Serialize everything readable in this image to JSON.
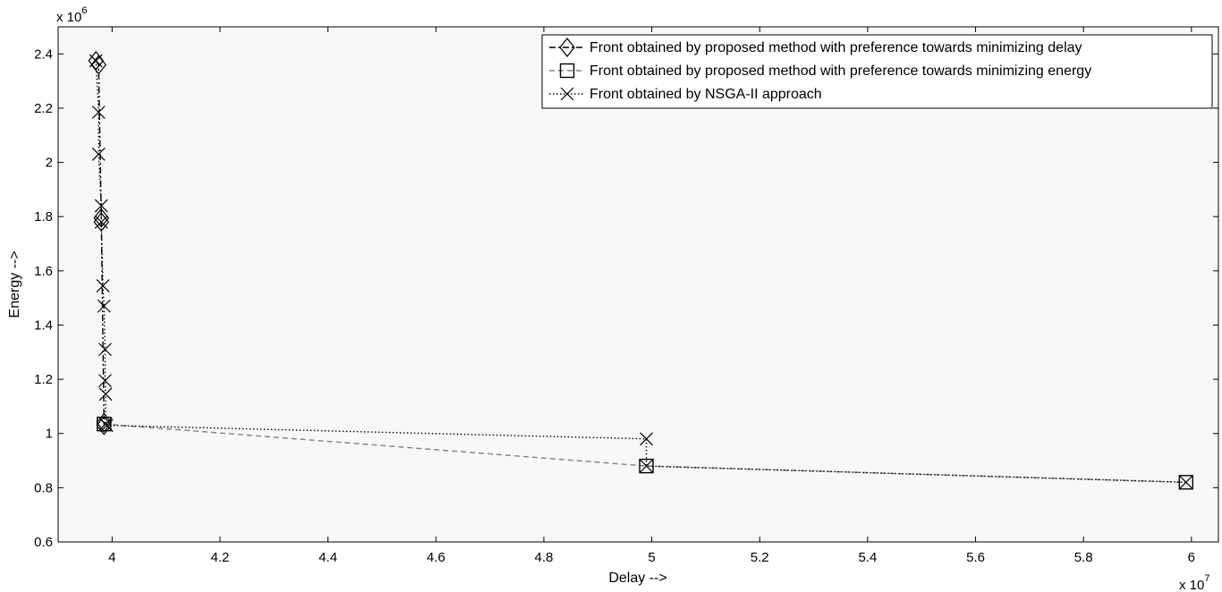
{
  "chart_data": {
    "type": "line",
    "xlabel": "Delay -->",
    "ylabel": "Energy -->",
    "x_exponent_label": "x 10",
    "x_exponent": "7",
    "y_exponent_label": "x 10",
    "y_exponent": "6",
    "xlim": [
      39000000,
      60500000
    ],
    "ylim": [
      600000,
      2500000
    ],
    "x_ticks": [
      40000000,
      42000000,
      44000000,
      46000000,
      48000000,
      50000000,
      52000000,
      54000000,
      56000000,
      58000000,
      60000000
    ],
    "x_tick_labels": [
      "4",
      "4.2",
      "4.4",
      "4.6",
      "4.8",
      "5",
      "5.2",
      "5.4",
      "5.6",
      "5.8",
      "6"
    ],
    "y_ticks": [
      600000,
      800000,
      1000000,
      1200000,
      1400000,
      1600000,
      1800000,
      2000000,
      2200000,
      2400000
    ],
    "y_tick_labels": [
      "0.6",
      "0.8",
      "1",
      "1.2",
      "1.4",
      "1.6",
      "1.8",
      "2",
      "2.2",
      "2.4"
    ],
    "grid": false,
    "legend_position": "top-right",
    "plot_background": "#f8f8f8",
    "series": [
      {
        "name": "Front obtained by proposed method with preference towards minimizing delay",
        "marker": "diamond",
        "line_style": "dashdot",
        "color": "#000000",
        "x": [
          39700000,
          39750000,
          39800000,
          39800000,
          39850000,
          39850000
        ],
        "y": [
          2375000,
          2360000,
          1795000,
          1780000,
          1040000,
          1030000
        ]
      },
      {
        "name": "Front obtained by proposed method with preference towards minimizing energy",
        "marker": "square",
        "line_style": "dashed",
        "color": "#808080",
        "x": [
          39850000,
          49900000,
          59900000
        ],
        "y": [
          1035000,
          880000,
          820000
        ]
      },
      {
        "name": "Front obtained by NSGA-II approach",
        "marker": "x",
        "line_style": "dotted",
        "color": "#000000",
        "x": [
          39700000,
          39750000,
          39750000,
          39800000,
          39800000,
          39830000,
          39850000,
          39870000,
          39870000,
          39880000,
          39880000,
          39900000,
          49900000,
          49900000,
          59900000
        ],
        "y": [
          2375000,
          2185000,
          2030000,
          1840000,
          1780000,
          1545000,
          1470000,
          1310000,
          1195000,
          1145000,
          1035000,
          1030000,
          980000,
          880000,
          820000
        ]
      }
    ]
  }
}
